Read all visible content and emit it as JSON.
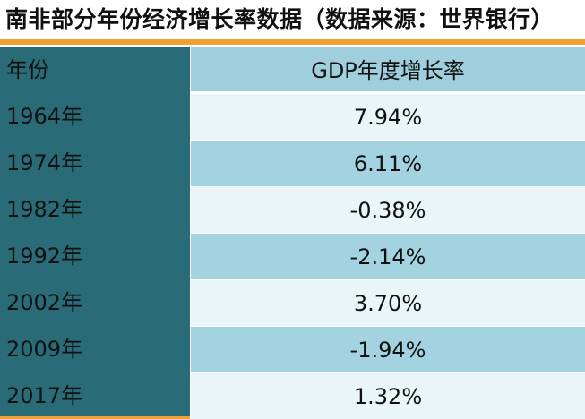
{
  "title": "南非部分年份经济增长率数据（数据来源：世界银行）",
  "table": {
    "headers": {
      "year": "年份",
      "value": "GDP年度增长率"
    },
    "rows": [
      {
        "year": "1964年",
        "value": "7.94%"
      },
      {
        "year": "1974年",
        "value": "6.11%"
      },
      {
        "year": "1982年",
        "value": "-0.38%"
      },
      {
        "year": "1992年",
        "value": "-2.14%"
      },
      {
        "year": "2002年",
        "value": "3.70%"
      },
      {
        "year": "2009年",
        "value": "-1.94%"
      },
      {
        "year": "2017年",
        "value": "1.32%"
      }
    ]
  },
  "colors": {
    "accent": "#f0a033",
    "year_column": "#2a6b78",
    "header_value": "#9fcfdd",
    "row_light": "#eaf5f9",
    "row_dark": "#a3d3e0"
  }
}
